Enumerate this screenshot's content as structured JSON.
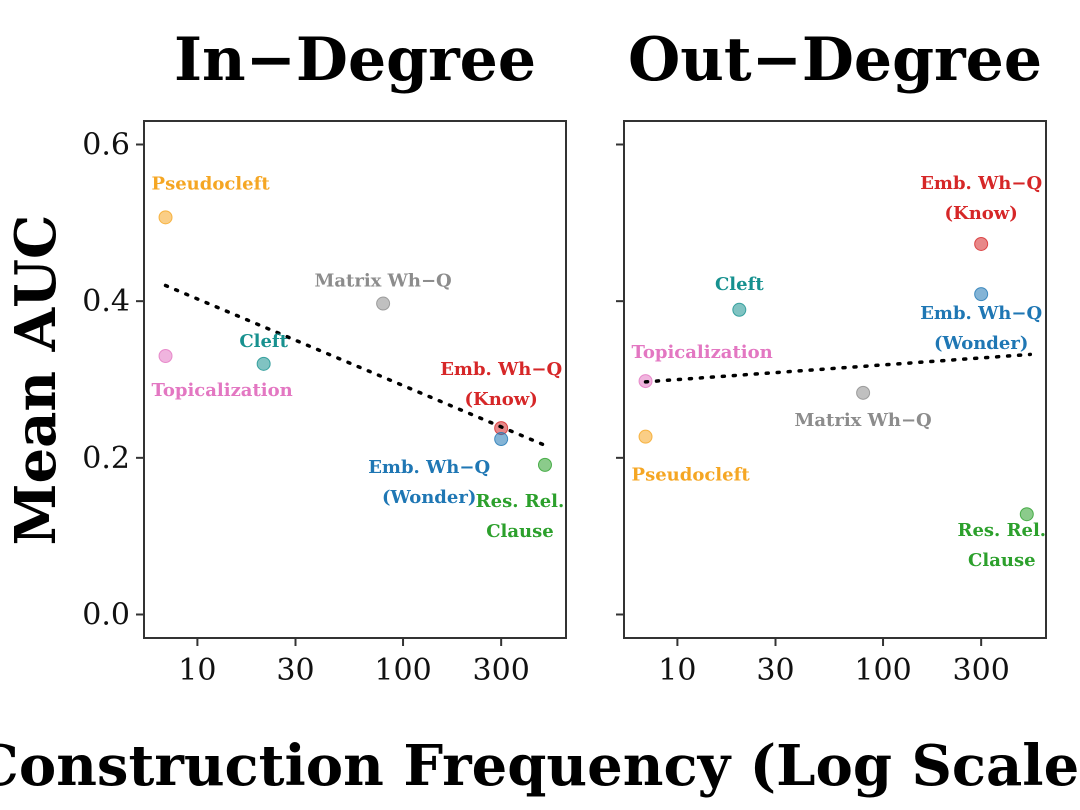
{
  "figure": {
    "ylabel": "Mean AUC",
    "xlabel": "Construction Frequency (Log Scale)"
  },
  "chart_data": [
    {
      "type": "scatter",
      "title": "In−Degree",
      "xscale": "log",
      "xlim": [
        5.5,
        620
      ],
      "ylim": [
        -0.03,
        0.63
      ],
      "xticks": [
        10,
        30,
        100,
        300
      ],
      "xtick_labels": [
        "10",
        "30",
        "100",
        "300"
      ],
      "yticks": [
        0.0,
        0.2,
        0.4,
        0.6
      ],
      "ytick_labels": [
        "0.0",
        "0.2",
        "0.4",
        "0.6"
      ],
      "trendline": {
        "style": "dotted",
        "x": [
          7,
          500
        ],
        "y": [
          0.42,
          0.215
        ]
      },
      "points": [
        {
          "name": "Pseudocleft",
          "x": 7,
          "y": 0.507,
          "color": "#f5a623",
          "label": [
            "Pseudocleft"
          ]
        },
        {
          "name": "Topicalization",
          "x": 7,
          "y": 0.33,
          "color": "#e377c2",
          "label": [
            "Topicalization"
          ]
        },
        {
          "name": "Cleft",
          "x": 21,
          "y": 0.32,
          "color": "#17918f",
          "label": [
            "Cleft"
          ]
        },
        {
          "name": "Matrix Wh-Q",
          "x": 80,
          "y": 0.397,
          "color": "#8c8c8c",
          "label": [
            "Matrix Wh−Q"
          ]
        },
        {
          "name": "Emb. Wh-Q (Know)",
          "x": 300,
          "y": 0.238,
          "color": "#d62728",
          "label": [
            "Emb. Wh−Q",
            "(Know)"
          ]
        },
        {
          "name": "Emb. Wh-Q (Wonder)",
          "x": 300,
          "y": 0.224,
          "color": "#1f77b4",
          "label": [
            "Emb. Wh−Q",
            "(Wonder)"
          ]
        },
        {
          "name": "Res. Rel. Clause",
          "x": 490,
          "y": 0.191,
          "color": "#2ca02c",
          "label": [
            "Res. Rel.",
            "Clause"
          ]
        }
      ]
    },
    {
      "type": "scatter",
      "title": "Out−Degree",
      "xscale": "log",
      "xlim": [
        5.5,
        620
      ],
      "ylim": [
        -0.03,
        0.63
      ],
      "xticks": [
        10,
        30,
        100,
        300
      ],
      "xtick_labels": [
        "10",
        "30",
        "100",
        "300"
      ],
      "yticks": [
        0.0,
        0.2,
        0.4,
        0.6
      ],
      "trendline": {
        "style": "dotted",
        "x": [
          7,
          520
        ],
        "y": [
          0.297,
          0.332
        ]
      },
      "points": [
        {
          "name": "Emb. Wh-Q (Know)",
          "x": 300,
          "y": 0.473,
          "color": "#d62728",
          "label": [
            "Emb. Wh−Q",
            "(Know)"
          ]
        },
        {
          "name": "Emb. Wh-Q (Wonder)",
          "x": 300,
          "y": 0.409,
          "color": "#1f77b4",
          "label": [
            "Emb. Wh−Q",
            "(Wonder)"
          ]
        },
        {
          "name": "Cleft",
          "x": 20,
          "y": 0.389,
          "color": "#17918f",
          "label": [
            "Cleft"
          ]
        },
        {
          "name": "Topicalization",
          "x": 7,
          "y": 0.298,
          "color": "#e377c2",
          "label": [
            "Topicalization"
          ]
        },
        {
          "name": "Matrix Wh-Q",
          "x": 80,
          "y": 0.283,
          "color": "#8c8c8c",
          "label": [
            "Matrix Wh−Q"
          ]
        },
        {
          "name": "Pseudocleft",
          "x": 7,
          "y": 0.227,
          "color": "#f5a623",
          "label": [
            "Pseudocleft"
          ]
        },
        {
          "name": "Res. Rel. Clause",
          "x": 500,
          "y": 0.128,
          "color": "#2ca02c",
          "label": [
            "Res. Rel.",
            "Clause"
          ]
        }
      ]
    }
  ]
}
